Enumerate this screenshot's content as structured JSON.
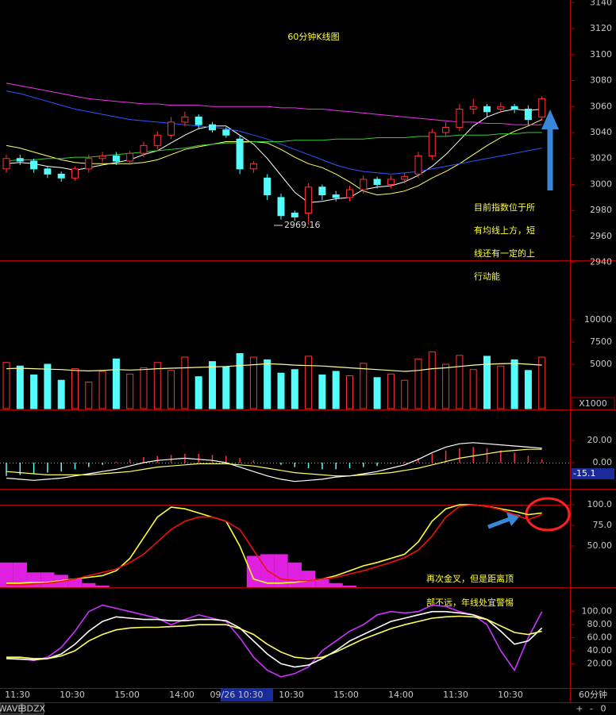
{
  "chart_data": [
    {
      "type": "candlestick",
      "title": "60分钟K线图",
      "open": [
        3012,
        3020,
        3018,
        3012,
        3008,
        3005,
        3012,
        3020,
        3022,
        3018,
        3024,
        3030,
        3038,
        3048,
        3052,
        3046,
        3042,
        3035,
        3012,
        3005,
        2990,
        2978,
        2978,
        2998,
        2992,
        2990,
        2996,
        3004,
        3000,
        3004,
        3008,
        3022,
        3040,
        3044,
        3058,
        3060,
        3058,
        3060,
        3058,
        3052
      ],
      "high": [
        3023,
        3023,
        3020,
        3014,
        3010,
        3014,
        3023,
        3025,
        3025,
        3026,
        3033,
        3041,
        3052,
        3056,
        3054,
        3048,
        3044,
        3038,
        3018,
        3008,
        2993,
        2980,
        3001,
        3000,
        2995,
        2999,
        3007,
        3006,
        3007,
        3009,
        3025,
        3043,
        3048,
        3062,
        3066,
        3062,
        3063,
        3062,
        3061,
        3068
      ],
      "low": [
        3009,
        3015,
        3009,
        3005,
        3002,
        3003,
        3009,
        3017,
        3015,
        3015,
        3021,
        3027,
        3035,
        3045,
        3043,
        3040,
        3036,
        3008,
        3009,
        2988,
        2973,
        2972,
        2969.16,
        2988,
        2987,
        2987,
        2993,
        2997,
        2997,
        3001,
        3005,
        3019,
        3037,
        3041,
        3054,
        3052,
        3055,
        3055,
        3046,
        3049
      ],
      "close": [
        3020,
        3018,
        3012,
        3008,
        3005,
        3012,
        3020,
        3022,
        3018,
        3024,
        3030,
        3038,
        3048,
        3052,
        3046,
        3042,
        3038,
        3012,
        3016,
        2992,
        2976,
        2975,
        2998,
        2992,
        2990,
        2996,
        3004,
        3000,
        3004,
        3006,
        3022,
        3040,
        3044,
        3058,
        3060,
        3056,
        3060,
        3058,
        3050,
        3066
      ],
      "series": [
        {
          "color": "#ffffff",
          "values": [
            3016,
            3017,
            3016,
            3014,
            3013,
            3011,
            3013,
            3015,
            3017,
            3019,
            3023,
            3026,
            3032,
            3038,
            3043,
            3045,
            3045,
            3038,
            3031,
            3020,
            3007,
            2994,
            2986,
            2987,
            2989,
            2990,
            2996,
            2998,
            2999,
            3002,
            3007,
            3014,
            3023,
            3034,
            3045,
            3052,
            3056,
            3058,
            3057,
            3058
          ]
        },
        {
          "color": "#ffff66",
          "values": [
            3030,
            3028,
            3025,
            3022,
            3019,
            3017,
            3016,
            3016,
            3016,
            3016,
            3017,
            3019,
            3023,
            3027,
            3029,
            3031,
            3033,
            3033,
            3033,
            3032,
            3027,
            3021,
            3016,
            3013,
            3008,
            3002,
            2995,
            2992,
            2993,
            2995,
            2999,
            3005,
            3010,
            3016,
            3023,
            3030,
            3036,
            3041,
            3045,
            3050
          ]
        },
        {
          "color": "#ee33ee",
          "values": [
            3078,
            3076,
            3074,
            3072,
            3070,
            3068,
            3066,
            3065,
            3064,
            3063,
            3062,
            3062,
            3061,
            3061,
            3061,
            3060,
            3060,
            3060,
            3060,
            3060,
            3059,
            3059,
            3058,
            3058,
            3057,
            3056,
            3055,
            3054,
            3053,
            3052,
            3051,
            3050,
            3049,
            3048,
            3048,
            3047,
            3047,
            3046,
            3046,
            3046
          ]
        },
        {
          "color": "#3355ff",
          "values": [
            3072,
            3070,
            3067,
            3064,
            3061,
            3058,
            3056,
            3054,
            3052,
            3050,
            3049,
            3048,
            3047,
            3046,
            3045,
            3044,
            3043,
            3041,
            3038,
            3035,
            3031,
            3027,
            3023,
            3019,
            3015,
            3012,
            3010,
            3009,
            3008,
            3009,
            3010,
            3012,
            3014,
            3016,
            3018,
            3020,
            3022,
            3024,
            3026,
            3028
          ]
        },
        {
          "color": "#33cc33",
          "values": [
            3018,
            3019,
            3019,
            3020,
            3020,
            3021,
            3021,
            3022,
            3023,
            3024,
            3025,
            3026,
            3027,
            3028,
            3030,
            3031,
            3032,
            3032,
            3033,
            3033,
            3033,
            3034,
            3034,
            3034,
            3035,
            3035,
            3035,
            3036,
            3036,
            3036,
            3037,
            3037,
            3037,
            3038,
            3038,
            3038,
            3039,
            3039,
            3040,
            3040
          ]
        }
      ],
      "ylim": [
        2938,
        3142
      ],
      "yticks": [
        2940,
        2960,
        2980,
        3000,
        3020,
        3040,
        3060,
        3080,
        3100,
        3120,
        3140
      ],
      "annotation": [
        "目前指数位于所",
        "有均线上方，短",
        "线还有一定的上",
        "行动能"
      ]
    },
    {
      "type": "bar",
      "unit_label": "X1000",
      "values": [
        5200,
        4800,
        3800,
        5000,
        3200,
        4500,
        3000,
        4200,
        5600,
        3900,
        4600,
        5200,
        4300,
        5800,
        3600,
        5300,
        4700,
        6200,
        5800,
        5500,
        4000,
        4400,
        5900,
        3800,
        4200,
        3700,
        5100,
        3500,
        3900,
        3200,
        5600,
        6400,
        5000,
        6000,
        4400,
        5900,
        4800,
        5500,
        4300,
        5800
      ],
      "series": [
        {
          "color": "#ffff99",
          "values": [
            4500,
            4550,
            4500,
            4450,
            4400,
            4300,
            4250,
            4300,
            4400,
            4350,
            4400,
            4500,
            4550,
            4600,
            4650,
            4700,
            4750,
            4850,
            4950,
            5050,
            5000,
            4900,
            4850,
            4800,
            4700,
            4600,
            4500,
            4400,
            4300,
            4200,
            4300,
            4500,
            4600,
            4750,
            4900,
            5000,
            5050,
            5100,
            5000,
            4900
          ]
        }
      ],
      "ylim": [
        0,
        16340
      ],
      "yticks": [
        5000,
        7500,
        10000
      ]
    },
    {
      "type": "macd",
      "readout": -15.1,
      "values": [
        -12,
        -11,
        -10,
        -9,
        -8,
        -6,
        -4,
        -2,
        1,
        3,
        5,
        6,
        7,
        8,
        8,
        7,
        6,
        4,
        2,
        0,
        -2,
        -4,
        -5,
        -6,
        -6,
        -5,
        -4,
        -3,
        -1,
        1,
        4,
        8,
        11,
        13,
        14,
        13,
        11,
        9,
        6,
        3
      ],
      "series": [
        {
          "color": "#ffffff",
          "values": [
            -14,
            -15,
            -16,
            -15,
            -14,
            -12,
            -10,
            -8,
            -6,
            -3,
            0,
            2,
            3,
            4,
            3,
            2,
            0,
            -4,
            -8,
            -12,
            -15,
            -17,
            -16,
            -15,
            -13,
            -12,
            -10,
            -8,
            -5,
            -2,
            3,
            9,
            14,
            17,
            18,
            17,
            16,
            15,
            14,
            13
          ]
        },
        {
          "color": "#ffff66",
          "values": [
            -8,
            -9,
            -10,
            -11,
            -11,
            -11,
            -11,
            -10,
            -9,
            -8,
            -6,
            -4,
            -3,
            -2,
            -1,
            -1,
            -1,
            -2,
            -3,
            -5,
            -7,
            -9,
            -10,
            -11,
            -12,
            -12,
            -11,
            -10,
            -9,
            -7,
            -5,
            -2,
            1,
            4,
            6,
            8,
            10,
            11,
            12,
            12
          ]
        }
      ],
      "ylim": [
        -22.9,
        45
      ],
      "yticks": [
        {
          "value": 0,
          "label": "0.00"
        },
        {
          "value": 20,
          "label": "20.00"
        }
      ]
    },
    {
      "type": "line",
      "bars": {
        "color": "#e020e0",
        "values": [
          30,
          30,
          18,
          18,
          15,
          10,
          5,
          2,
          0,
          0,
          0,
          0,
          0,
          0,
          0,
          0,
          0,
          0,
          38,
          40,
          40,
          30,
          20,
          10,
          5,
          2,
          0,
          0,
          0,
          0,
          0,
          0,
          0,
          0,
          0,
          0,
          0,
          0,
          0,
          0
        ]
      },
      "series": [
        {
          "color": "#ffff33",
          "values": [
            5,
            5,
            6,
            6,
            8,
            10,
            12,
            14,
            20,
            35,
            60,
            85,
            97,
            95,
            90,
            85,
            80,
            50,
            10,
            5,
            5,
            6,
            8,
            10,
            14,
            20,
            26,
            30,
            35,
            40,
            55,
            80,
            95,
            100,
            100,
            98,
            95,
            92,
            88,
            90
          ]
        },
        {
          "color": "#ee1111",
          "values": [
            3,
            3,
            4,
            5,
            7,
            10,
            14,
            18,
            22,
            30,
            40,
            55,
            70,
            80,
            85,
            85,
            80,
            70,
            45,
            20,
            10,
            8,
            8,
            10,
            12,
            16,
            20,
            25,
            30,
            36,
            45,
            62,
            85,
            98,
            100,
            98,
            94,
            88,
            82,
            88
          ]
        }
      ],
      "ylim": [
        0,
        117.3
      ],
      "yticks": [
        {
          "value": 50,
          "label": "50.00"
        },
        {
          "value": 75,
          "label": "75.0"
        },
        {
          "value": 100,
          "label": "100.0"
        }
      ],
      "annotation": [
        "再次金叉，但是距离顶",
        "部不远，年线处宜警惕"
      ]
    },
    {
      "type": "line",
      "series": [
        {
          "color": "#cc33ff",
          "values": [
            30,
            28,
            25,
            30,
            45,
            70,
            100,
            110,
            105,
            100,
            95,
            90,
            80,
            88,
            95,
            90,
            85,
            60,
            30,
            10,
            0,
            5,
            15,
            40,
            55,
            70,
            80,
            95,
            100,
            98,
            100,
            110,
            108,
            100,
            95,
            80,
            40,
            10,
            60,
            100
          ]
        },
        {
          "color": "#ffffff",
          "values": [
            28,
            27,
            26,
            28,
            35,
            50,
            70,
            85,
            92,
            90,
            88,
            88,
            86,
            86,
            88,
            88,
            86,
            75,
            55,
            35,
            20,
            15,
            18,
            28,
            40,
            55,
            65,
            75,
            85,
            90,
            95,
            100,
            100,
            98,
            95,
            88,
            70,
            50,
            55,
            75
          ]
        },
        {
          "color": "#ffff66",
          "values": [
            30,
            30,
            28,
            28,
            32,
            40,
            55,
            65,
            72,
            75,
            76,
            76,
            77,
            78,
            80,
            80,
            80,
            74,
            65,
            50,
            38,
            30,
            28,
            30,
            38,
            48,
            58,
            66,
            74,
            80,
            85,
            90,
            92,
            93,
            92,
            88,
            78,
            68,
            65,
            70
          ]
        }
      ],
      "ylim": [
        -16,
        135
      ],
      "yticks": [
        {
          "value": 20,
          "label": "20.00"
        },
        {
          "value": 40,
          "label": "40.00"
        },
        {
          "value": 60,
          "label": "60.00"
        },
        {
          "value": 80,
          "label": "80.00"
        },
        {
          "value": 100,
          "label": "100.00"
        }
      ]
    }
  ],
  "time_axis": {
    "labels": [
      "11:30",
      "10:30",
      "15:00",
      "14:00",
      "09/26 10:30",
      "10:30",
      "15:00",
      "14:00",
      "11:30",
      "10:30"
    ],
    "period": "60分钟"
  },
  "toolbar": {
    "tabs": [
      "WAVE",
      "BDZX"
    ],
    "buttons": [
      "+",
      "-",
      "0"
    ]
  }
}
